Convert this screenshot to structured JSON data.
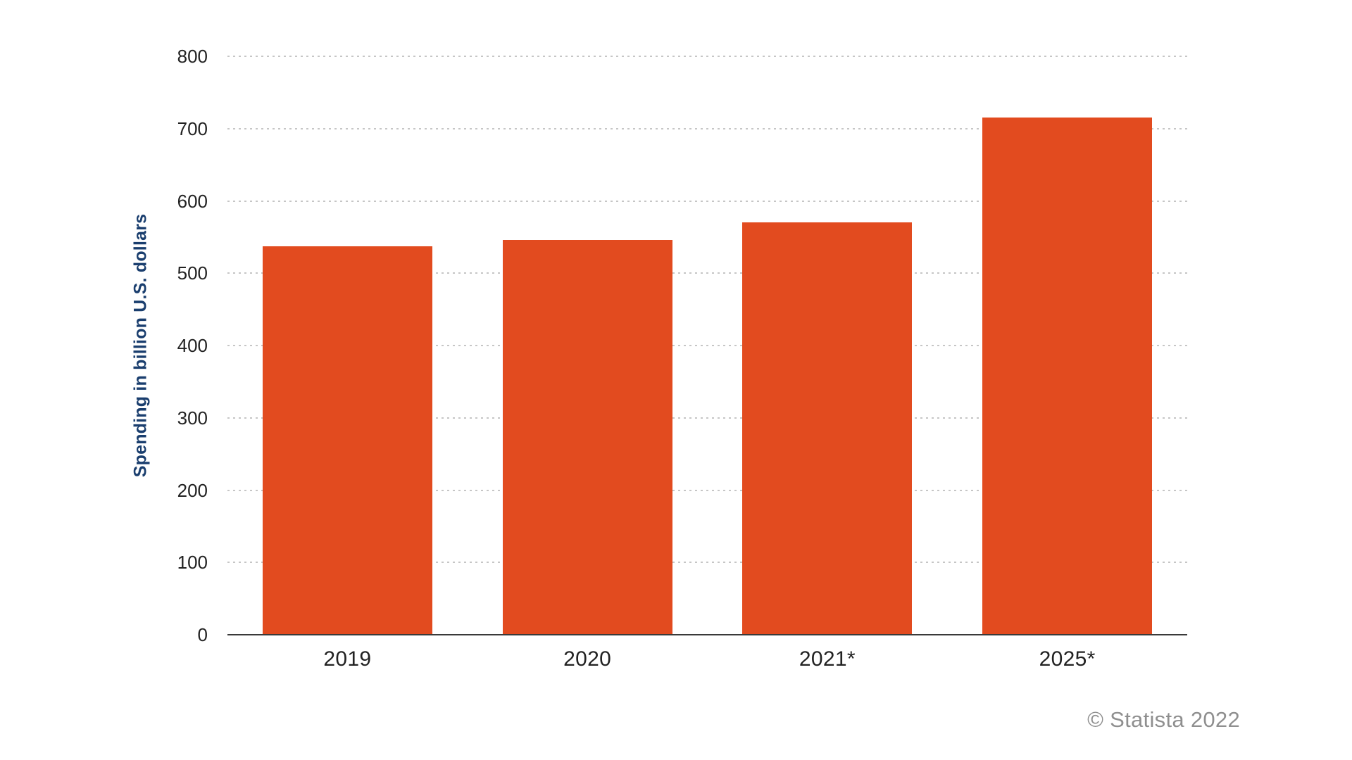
{
  "chart_data": {
    "type": "bar",
    "categories": [
      "2019",
      "2020",
      "2021*",
      "2025*"
    ],
    "values": [
      537,
      546,
      570,
      715
    ],
    "title": "",
    "xlabel": "",
    "ylabel": "Spending in billion U.S. dollars",
    "ylim": [
      0,
      800
    ],
    "yticks": [
      0,
      100,
      200,
      300,
      400,
      500,
      600,
      700,
      800
    ],
    "grid": "horizontal-dotted",
    "legend": "none",
    "bar_color": "#e24b1f",
    "ylabel_color": "#1a3e6e"
  },
  "credit": "© Statista 2022"
}
